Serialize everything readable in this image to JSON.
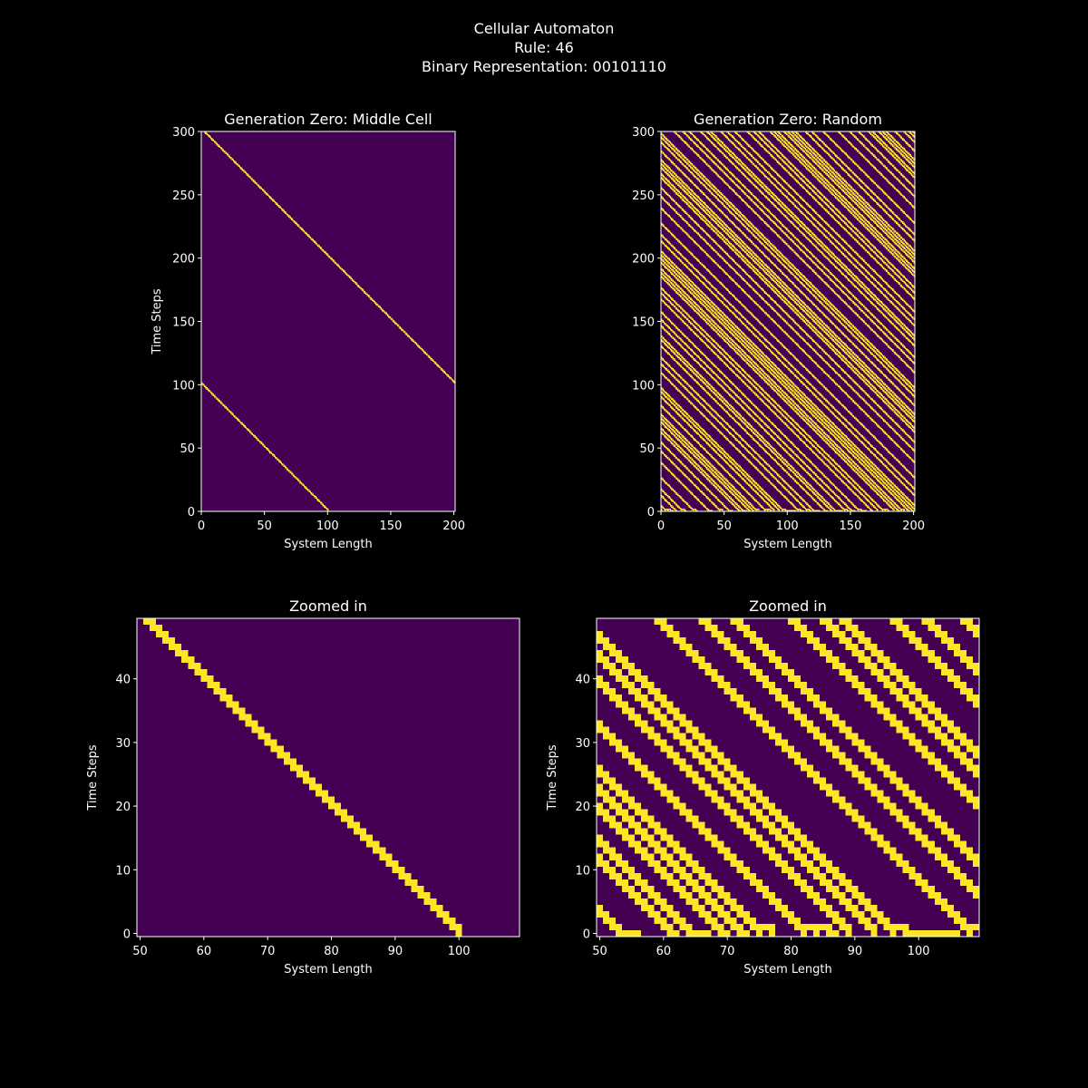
{
  "figure": {
    "title_lines": [
      "Cellular Automaton",
      "Rule: 46",
      "Binary Representation: 00101110"
    ],
    "background": "#000000",
    "colormap": "viridis",
    "color_dead": "#440154",
    "color_alive": "#fde725",
    "foreground": "#ffffff"
  },
  "chart_data": [
    {
      "type": "heatmap",
      "title": "Generation Zero: Middle Cell",
      "xlabel": "System Length",
      "ylabel": "Time Steps",
      "xlim": [
        0,
        201
      ],
      "ylim": [
        0,
        300
      ],
      "xticks": [
        0,
        50,
        100,
        150,
        200
      ],
      "yticks": [
        0,
        50,
        100,
        150,
        200,
        250,
        300
      ],
      "initial_condition": "middle",
      "rule": 46,
      "width": 201,
      "steps": 300,
      "grid": false
    },
    {
      "type": "heatmap",
      "title": "Generation Zero: Random",
      "xlabel": "System Length",
      "ylabel": "",
      "xlim": [
        0,
        201
      ],
      "ylim": [
        0,
        300
      ],
      "xticks": [
        0,
        50,
        100,
        150,
        200
      ],
      "yticks": [
        0,
        50,
        100,
        150,
        200,
        250,
        300
      ],
      "initial_condition": "random",
      "rule": 46,
      "width": 201,
      "steps": 300,
      "grid": false
    },
    {
      "type": "heatmap",
      "title": "Zoomed in",
      "xlabel": "System Length",
      "ylabel": "Time Steps",
      "xlim": [
        49.5,
        109.5
      ],
      "ylim": [
        -0.5,
        49.5
      ],
      "xticks": [
        50,
        60,
        70,
        80,
        90,
        100
      ],
      "yticks": [
        0,
        10,
        20,
        30,
        40
      ],
      "source": "Generation Zero: Middle Cell",
      "grid": false
    },
    {
      "type": "heatmap",
      "title": "Zoomed in",
      "xlabel": "System Length",
      "ylabel": "Time Steps",
      "xlim": [
        49.5,
        109.5
      ],
      "ylim": [
        -0.5,
        49.5
      ],
      "xticks": [
        50,
        60,
        70,
        80,
        90,
        100
      ],
      "yticks": [
        0,
        10,
        20,
        30,
        40
      ],
      "source": "Generation Zero: Random",
      "grid": false
    }
  ]
}
